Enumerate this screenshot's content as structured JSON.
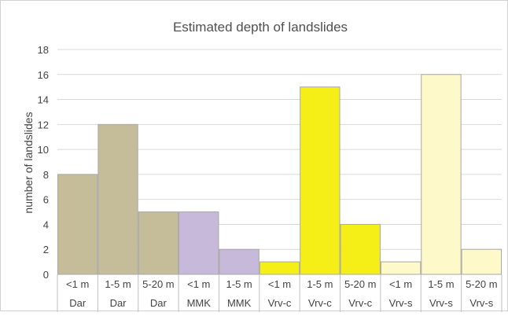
{
  "chart_data": {
    "type": "bar",
    "title": "Estimated depth of landslides",
    "ylabel": "number of landslides",
    "xlabel": "",
    "ylim": [
      0,
      18
    ],
    "yticks": [
      0,
      2,
      4,
      6,
      8,
      10,
      12,
      14,
      16,
      18
    ],
    "grid": true,
    "legend": "none",
    "categories": [
      {
        "depth": "<1 m",
        "group": "Dar",
        "value": 8,
        "color": "#c5bd99"
      },
      {
        "depth": "1-5 m",
        "group": "Dar",
        "value": 12,
        "color": "#c5bd99"
      },
      {
        "depth": "5-20 m",
        "group": "Dar",
        "value": 5,
        "color": "#c5bd99"
      },
      {
        "depth": "<1 m",
        "group": "MMK",
        "value": 5,
        "color": "#c7b9da"
      },
      {
        "depth": "1-5 m",
        "group": "MMK",
        "value": 2,
        "color": "#c7b9da"
      },
      {
        "depth": "<1 m",
        "group": "Vrv-c",
        "value": 1,
        "color": "#f5ee17"
      },
      {
        "depth": "1-5 m",
        "group": "Vrv-c",
        "value": 15,
        "color": "#f5ee17"
      },
      {
        "depth": "5-20 m",
        "group": "Vrv-c",
        "value": 4,
        "color": "#f5ee17"
      },
      {
        "depth": "<1 m",
        "group": "Vrv-s",
        "value": 1,
        "color": "#fdf9c9"
      },
      {
        "depth": "1-5 m",
        "group": "Vrv-s",
        "value": 16,
        "color": "#fdf9c9"
      },
      {
        "depth": "5-20 m",
        "group": "Vrv-s",
        "value": 2,
        "color": "#fdf9c9"
      }
    ]
  }
}
